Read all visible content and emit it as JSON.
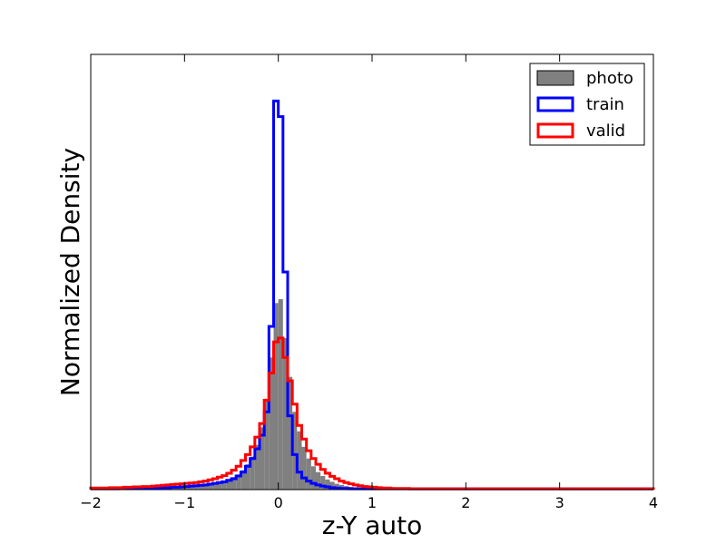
{
  "chart_data": {
    "type": "histogram",
    "title": "",
    "xlabel": "z-Y auto",
    "ylabel": "Normalized Density",
    "xlim": [
      -2,
      4
    ],
    "ylim": [
      0,
      1.12
    ],
    "xticks": [
      -2,
      -1,
      0,
      1,
      2,
      3,
      4
    ],
    "xtick_labels": [
      "−2",
      "−1",
      "0",
      "1",
      "2",
      "3",
      "4"
    ],
    "yticks_visible": false,
    "grid": false,
    "legend_position": "top-right",
    "bin_width": 0.05,
    "bin_start": -2.0,
    "series": [
      {
        "name": "photo",
        "style": "filled",
        "color": "#808080",
        "values": [
          0.003,
          0.003,
          0.003,
          0.003,
          0.004,
          0.004,
          0.004,
          0.005,
          0.005,
          0.006,
          0.006,
          0.006,
          0.006,
          0.006,
          0.007,
          0.007,
          0.008,
          0.008,
          0.009,
          0.009,
          0.01,
          0.011,
          0.012,
          0.013,
          0.014,
          0.016,
          0.018,
          0.02,
          0.023,
          0.027,
          0.032,
          0.039,
          0.05,
          0.065,
          0.085,
          0.115,
          0.16,
          0.23,
          0.34,
          0.48,
          0.49,
          0.39,
          0.29,
          0.2,
          0.15,
          0.11,
          0.08,
          0.06,
          0.045,
          0.035,
          0.026,
          0.02,
          0.015,
          0.012,
          0.009,
          0.007,
          0.006,
          0.005,
          0.004,
          0.003,
          0.003,
          0.002,
          0.002,
          0.002,
          0.002,
          0.002,
          0.002,
          0.002,
          0.002,
          0.002,
          0.002,
          0.002,
          0.002,
          0.002,
          0.002,
          0.002,
          0.002,
          0.002,
          0.002,
          0.002,
          0.002,
          0.002,
          0.002,
          0.002,
          0.002,
          0.002,
          0.002,
          0.002,
          0.002,
          0.002,
          0.002,
          0.002,
          0.002,
          0.002,
          0.002,
          0.002,
          0.002,
          0.002,
          0.002,
          0.002,
          0.002,
          0.002,
          0.002,
          0.002,
          0.002,
          0.002,
          0.002,
          0.002,
          0.002,
          0.002,
          0.002,
          0.002,
          0.002,
          0.002,
          0.002,
          0.002,
          0.002,
          0.002,
          0.002,
          0.002
        ]
      },
      {
        "name": "train",
        "style": "step",
        "color": "#0000ff",
        "values": [
          0.002,
          0.002,
          0.002,
          0.002,
          0.002,
          0.002,
          0.003,
          0.003,
          0.003,
          0.003,
          0.004,
          0.004,
          0.004,
          0.004,
          0.004,
          0.005,
          0.005,
          0.006,
          0.006,
          0.007,
          0.008,
          0.009,
          0.01,
          0.011,
          0.012,
          0.014,
          0.016,
          0.018,
          0.02,
          0.024,
          0.028,
          0.035,
          0.045,
          0.06,
          0.08,
          0.105,
          0.14,
          0.2,
          0.42,
          1.0,
          0.96,
          0.56,
          0.19,
          0.09,
          0.045,
          0.03,
          0.022,
          0.016,
          0.012,
          0.009,
          0.007,
          0.005,
          0.004,
          0.003,
          0.003,
          0.002,
          0.002,
          0.002,
          0.002,
          0.002,
          0.002,
          0.002,
          0.002,
          0.002,
          0.002,
          0.002,
          0.002,
          0.002,
          0.002,
          0.002,
          0.002,
          0.002,
          0.002,
          0.002,
          0.002,
          0.002,
          0.002,
          0.002,
          0.002,
          0.002,
          0.002,
          0.002,
          0.002,
          0.002,
          0.002,
          0.002,
          0.002,
          0.002,
          0.002,
          0.002,
          0.002,
          0.002,
          0.002,
          0.002,
          0.002,
          0.002,
          0.002,
          0.002,
          0.002,
          0.002,
          0.002,
          0.002,
          0.002,
          0.002,
          0.002,
          0.002,
          0.002,
          0.002,
          0.002,
          0.002,
          0.002,
          0.002,
          0.002,
          0.002,
          0.002,
          0.002,
          0.002,
          0.002,
          0.002,
          0.002
        ]
      },
      {
        "name": "valid",
        "style": "step",
        "color": "#ff0000",
        "values": [
          0.004,
          0.004,
          0.004,
          0.004,
          0.005,
          0.005,
          0.005,
          0.006,
          0.006,
          0.007,
          0.007,
          0.008,
          0.008,
          0.009,
          0.01,
          0.011,
          0.012,
          0.013,
          0.014,
          0.015,
          0.016,
          0.017,
          0.018,
          0.02,
          0.022,
          0.025,
          0.028,
          0.032,
          0.036,
          0.042,
          0.05,
          0.06,
          0.075,
          0.09,
          0.11,
          0.135,
          0.17,
          0.23,
          0.3,
          0.38,
          0.39,
          0.34,
          0.28,
          0.22,
          0.165,
          0.13,
          0.1,
          0.08,
          0.065,
          0.052,
          0.042,
          0.034,
          0.028,
          0.022,
          0.018,
          0.015,
          0.012,
          0.01,
          0.008,
          0.007,
          0.006,
          0.005,
          0.004,
          0.004,
          0.003,
          0.003,
          0.003,
          0.003,
          0.002,
          0.002,
          0.002,
          0.002,
          0.002,
          0.002,
          0.002,
          0.002,
          0.002,
          0.002,
          0.002,
          0.002,
          0.002,
          0.002,
          0.002,
          0.002,
          0.002,
          0.002,
          0.002,
          0.002,
          0.002,
          0.002,
          0.002,
          0.002,
          0.002,
          0.002,
          0.002,
          0.002,
          0.002,
          0.002,
          0.002,
          0.002,
          0.002,
          0.002,
          0.002,
          0.002,
          0.002,
          0.002,
          0.002,
          0.002,
          0.002,
          0.002,
          0.002,
          0.002,
          0.002,
          0.002,
          0.002,
          0.002,
          0.002,
          0.002,
          0.002,
          0.002
        ]
      }
    ]
  }
}
